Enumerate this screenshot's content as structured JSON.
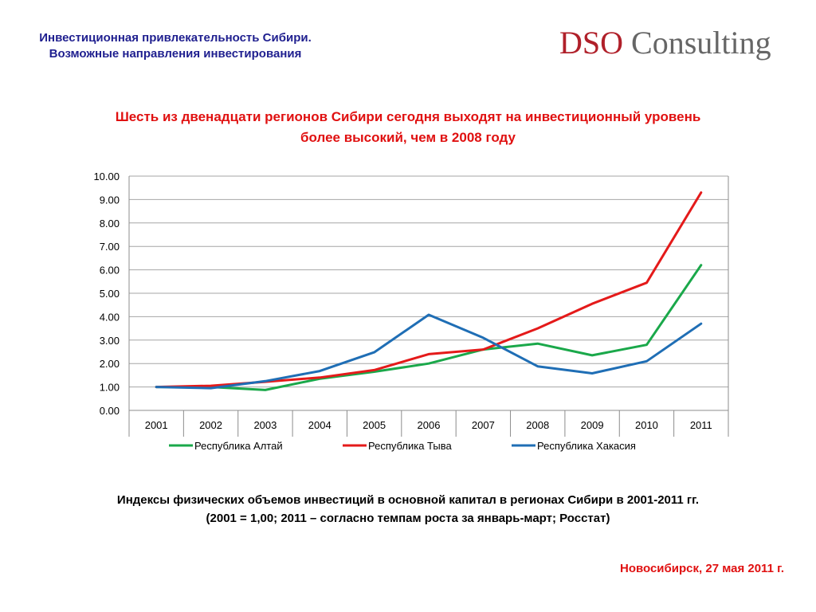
{
  "header": {
    "title_line1": "Инвестиционная привлекательность Сибири.",
    "title_line2": "Возможные направления инвестирования"
  },
  "logo": {
    "brand": "DSO",
    "rest": " Consulting"
  },
  "headline": {
    "line1": "Шесть из двенадцати регионов Сибири сегодня выходят на инвестиционный уровень",
    "line2": "более высокий, чем в 2008 году"
  },
  "chart_data": {
    "type": "line",
    "categories": [
      "2001",
      "2002",
      "2003",
      "2004",
      "2005",
      "2006",
      "2007",
      "2008",
      "2009",
      "2010",
      "2011"
    ],
    "ylim": [
      0,
      10
    ],
    "y_ticks": [
      "0.00",
      "1.00",
      "2.00",
      "3.00",
      "4.00",
      "5.00",
      "6.00",
      "7.00",
      "8.00",
      "9.00",
      "10.00"
    ],
    "grid": true,
    "legend_position": "bottom",
    "series": [
      {
        "name": "Республика Алтай",
        "color": "#1aa84a",
        "values": [
          1.0,
          1.0,
          0.87,
          1.35,
          1.65,
          2.0,
          2.6,
          2.85,
          2.35,
          2.8,
          6.2
        ]
      },
      {
        "name": "Республика Тыва",
        "color": "#e41a1a",
        "values": [
          1.0,
          1.05,
          1.22,
          1.4,
          1.72,
          2.4,
          2.6,
          3.5,
          4.55,
          5.45,
          9.3
        ]
      },
      {
        "name": "Республика Хакасия",
        "color": "#1f6eb5",
        "values": [
          1.0,
          0.95,
          1.25,
          1.68,
          2.48,
          4.08,
          3.1,
          1.88,
          1.58,
          2.1,
          3.7
        ]
      }
    ]
  },
  "caption": {
    "line1": "Индексы физических объемов инвестиций в основной капитал в регионах Сибири в 2001-2011 гг.",
    "line2": "(2001 = 1,00; 2011 – согласно темпам роста за январь-март; Росстат)"
  },
  "footer": {
    "text": "Новосибирск, 27 мая 2011 г."
  }
}
